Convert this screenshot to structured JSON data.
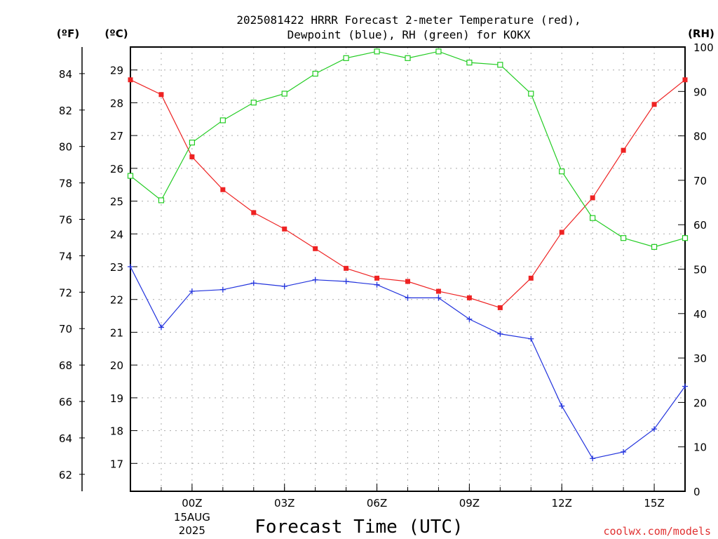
{
  "chart_data": {
    "type": "line",
    "title_line1": "2025081422 HRRR Forecast 2-meter Temperature (red),",
    "title_line2": "Dewpoint (blue), RH (green) for KOKX",
    "xlabel": "Forecast Time (UTC)",
    "credit": "coolwx.com/models",
    "units": {
      "fahrenheit": "(ºF)",
      "celsius": "(ºC)",
      "rh": "(RH)"
    },
    "x": [
      -2,
      -1,
      0,
      1,
      2,
      3,
      4,
      5,
      6,
      7,
      8,
      9,
      10,
      11,
      12,
      13,
      14,
      15,
      16
    ],
    "xlim": [
      -2,
      16
    ],
    "x_ticks": [
      {
        "x": 0,
        "label": "00Z",
        "sub1": "15AUG",
        "sub2": "2025"
      },
      {
        "x": 3,
        "label": "03Z",
        "sub1": "",
        "sub2": ""
      },
      {
        "x": 6,
        "label": "06Z",
        "sub1": "",
        "sub2": ""
      },
      {
        "x": 9,
        "label": "09Z",
        "sub1": "",
        "sub2": ""
      },
      {
        "x": 12,
        "label": "12Z",
        "sub1": "",
        "sub2": ""
      },
      {
        "x": 15,
        "label": "15Z",
        "sub1": "",
        "sub2": ""
      }
    ],
    "celsius_axis": {
      "ylim": [
        16.15,
        29.7
      ],
      "ticks": [
        17,
        18,
        19,
        20,
        21,
        22,
        23,
        24,
        25,
        26,
        27,
        28,
        29
      ]
    },
    "fahrenheit_ticks": [
      62,
      64,
      66,
      68,
      70,
      72,
      74,
      76,
      78,
      80,
      82,
      84
    ],
    "rh_axis": {
      "ylim": [
        0,
        100
      ],
      "ticks": [
        0,
        10,
        20,
        30,
        40,
        50,
        60,
        70,
        80,
        90,
        100
      ]
    },
    "grid": true,
    "series": [
      {
        "name": "Temperature",
        "axis": "celsius",
        "color": "#ee2222",
        "marker": "square-filled",
        "values": [
          28.7,
          28.25,
          26.35,
          25.35,
          24.65,
          24.15,
          23.55,
          22.95,
          22.65,
          22.55,
          22.25,
          22.05,
          21.75,
          22.65,
          24.05,
          25.1,
          26.55,
          27.95,
          28.7
        ]
      },
      {
        "name": "Dewpoint",
        "axis": "celsius",
        "color": "#2233dd",
        "marker": "plus",
        "values": [
          23.0,
          21.15,
          22.25,
          22.3,
          22.5,
          22.4,
          22.6,
          22.55,
          22.45,
          22.05,
          22.05,
          21.4,
          20.95,
          20.8,
          18.75,
          17.15,
          17.35,
          18.05,
          19.35
        ]
      },
      {
        "name": "RH",
        "axis": "rh",
        "color": "#22cc22",
        "marker": "square-open",
        "values": [
          71,
          65.5,
          78.5,
          83.5,
          87.5,
          89.5,
          94,
          97.5,
          99,
          97.5,
          99,
          96.5,
          96,
          89.5,
          72,
          61.5,
          57,
          55,
          57
        ]
      }
    ]
  }
}
